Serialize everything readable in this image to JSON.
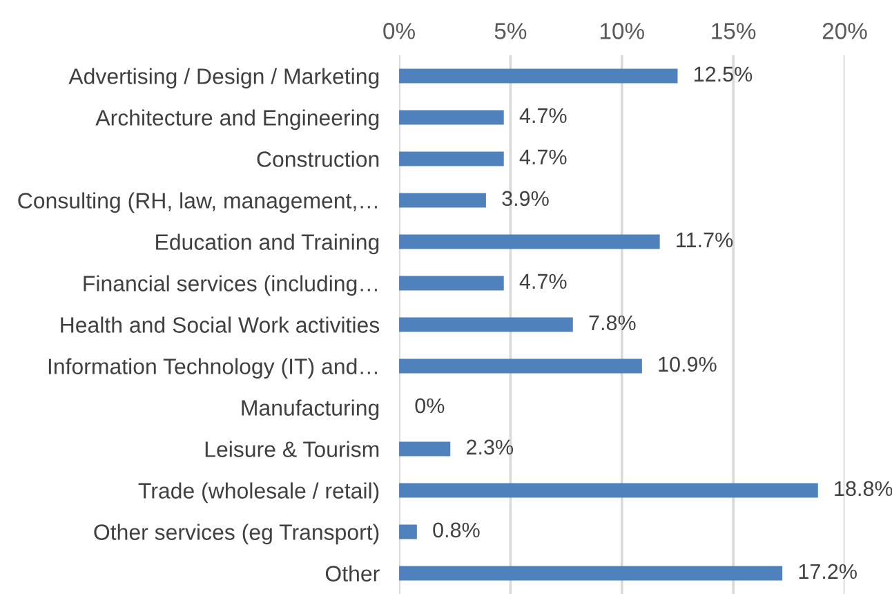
{
  "chart_data": {
    "type": "bar",
    "orientation": "horizontal",
    "categories": [
      "Advertising / Design / Marketing",
      "Architecture and Engineering",
      "Construction",
      "Consulting (RH, law, management,…",
      "Education and Training",
      "Financial services (including…",
      "Health and Social Work activities",
      "Information Technology (IT) and…",
      "Manufacturing",
      "Leisure & Tourism",
      "Trade (wholesale / retail)",
      "Other services (eg Transport)",
      "Other"
    ],
    "values": [
      12.5,
      4.7,
      4.7,
      3.9,
      11.7,
      4.7,
      7.8,
      10.9,
      0,
      2.3,
      18.8,
      0.8,
      17.2
    ],
    "value_labels": [
      "12.5%",
      "4.7%",
      "4.7%",
      "3.9%",
      "11.7%",
      "4.7%",
      "7.8%",
      "10.9%",
      "0%",
      "2.3%",
      "18.8%",
      "0.8%",
      "17.2%"
    ],
    "color": "#4f81bd",
    "xlim": [
      0,
      20
    ],
    "xticks": [
      {
        "value": 0,
        "label": "0%"
      },
      {
        "value": 5,
        "label": "5%"
      },
      {
        "value": 10,
        "label": "10%"
      },
      {
        "value": 15,
        "label": "15%"
      },
      {
        "value": 20,
        "label": "20%"
      }
    ],
    "grid": "x"
  }
}
